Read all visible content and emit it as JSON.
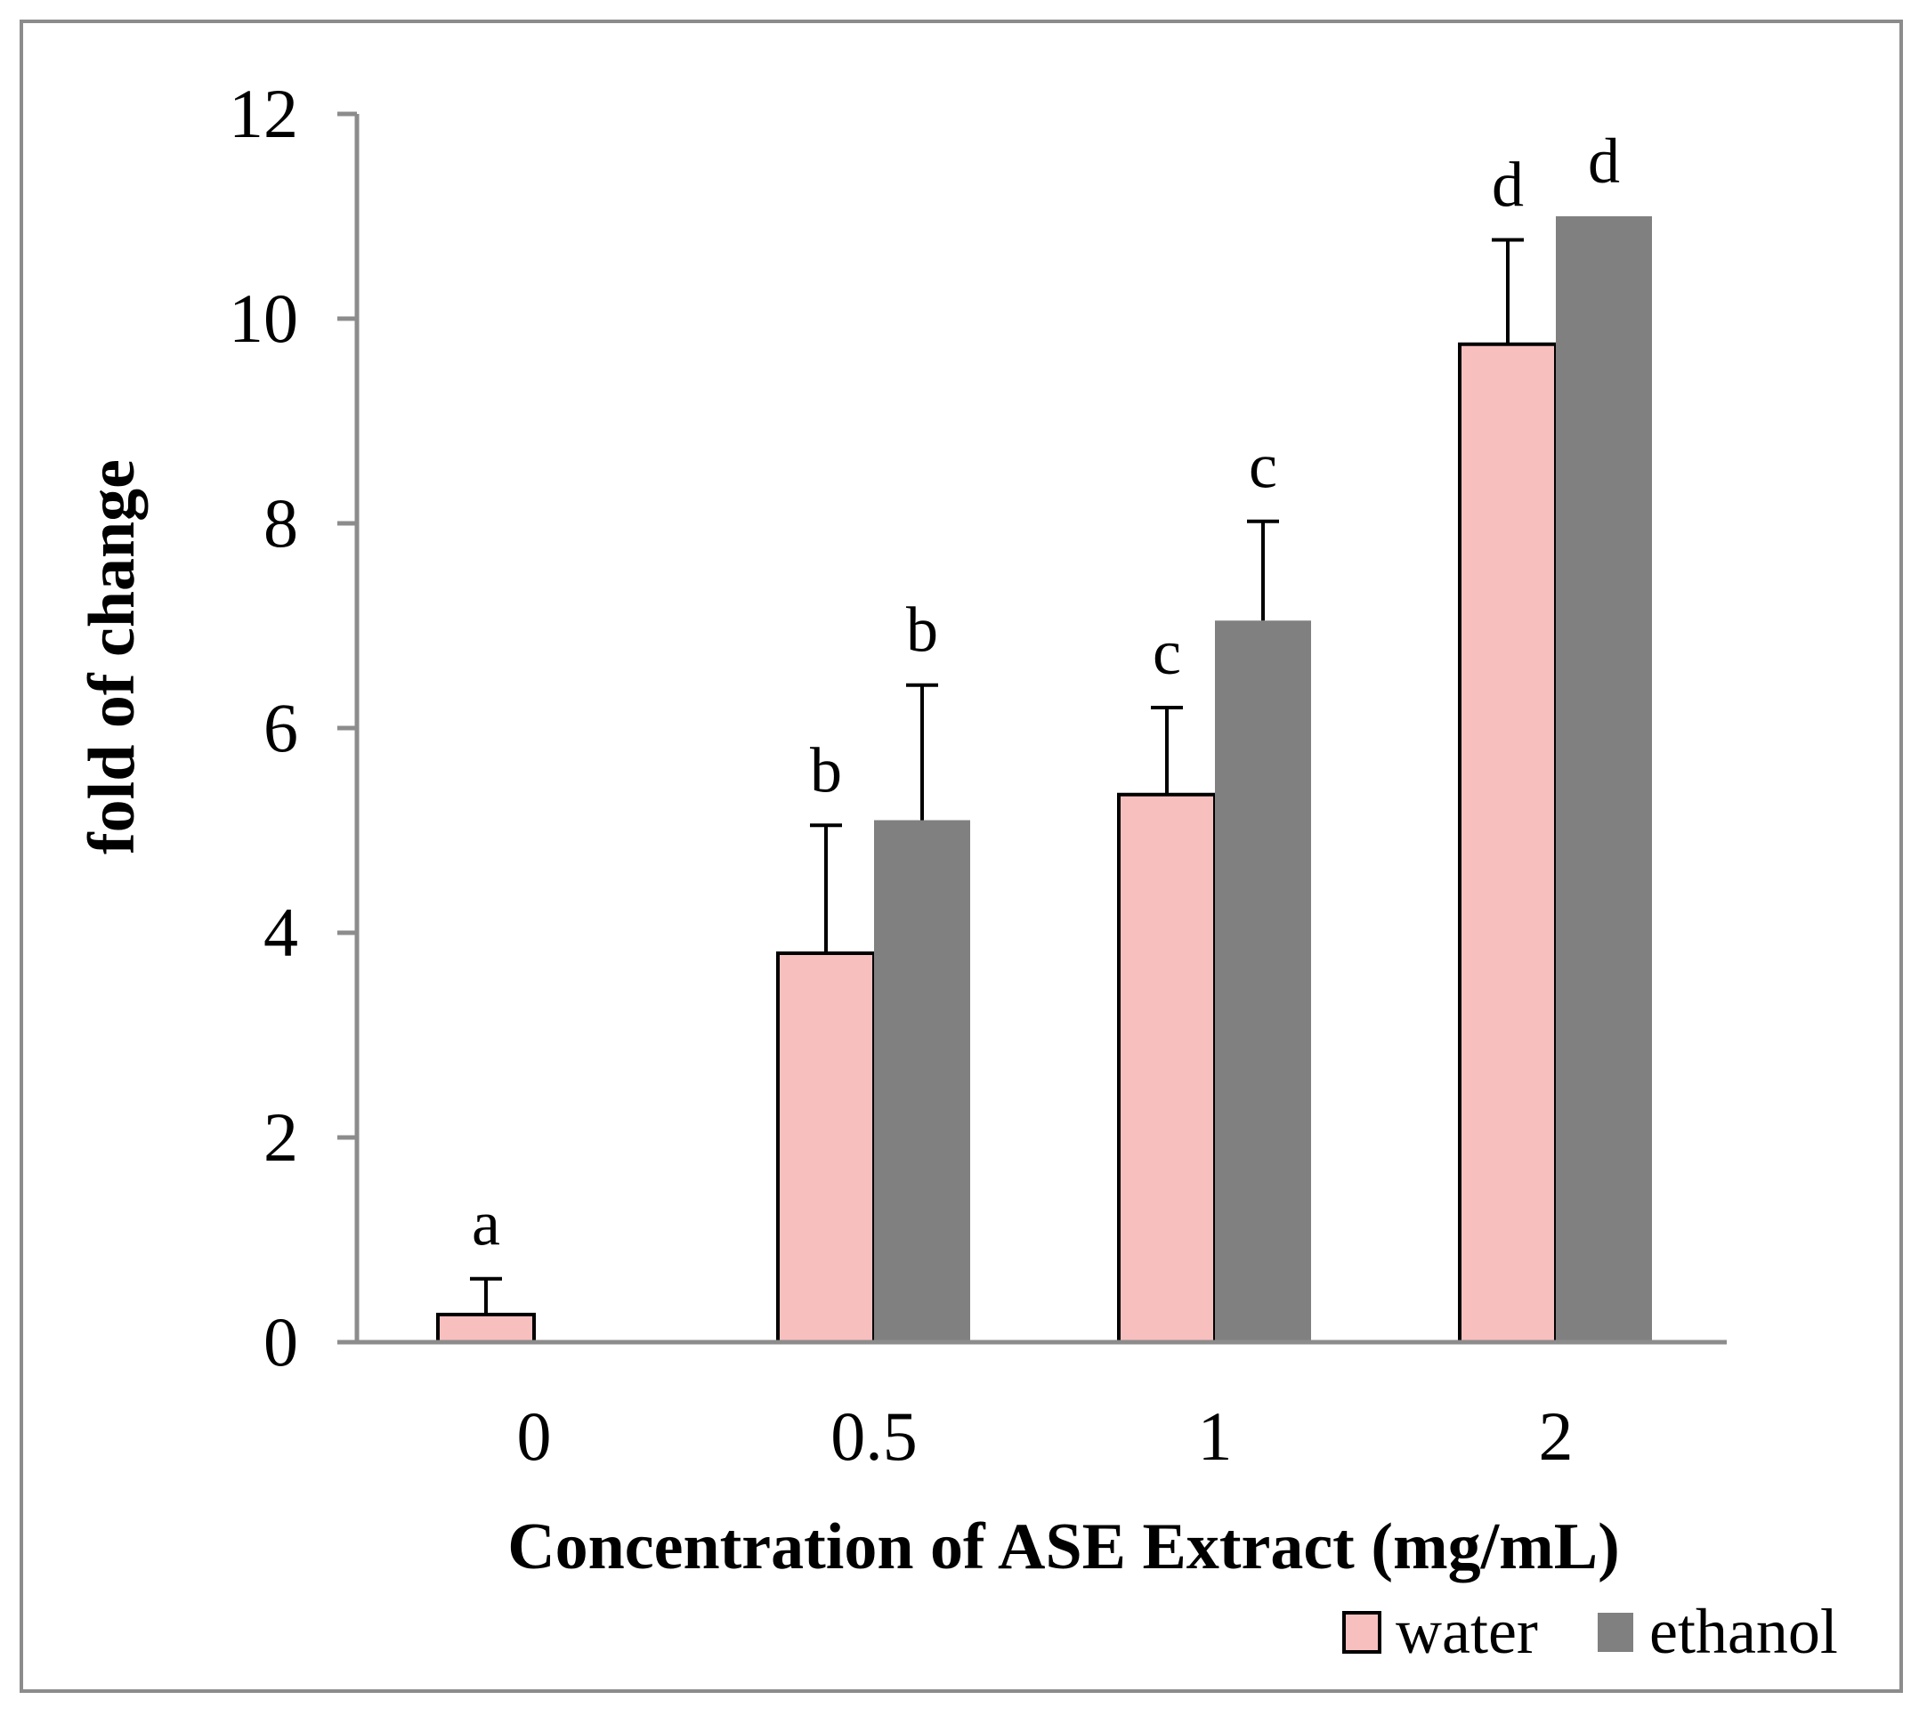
{
  "chart_data": {
    "type": "bar",
    "title": "",
    "xlabel": "Concentration of ASE Extract (mg/mL)",
    "ylabel": "fold of change",
    "categories": [
      "0",
      "0.5",
      "1",
      "2"
    ],
    "ylim": [
      0,
      12
    ],
    "yticks": [
      0,
      2,
      4,
      6,
      8,
      10,
      12
    ],
    "yticks_labels": [
      "0",
      "2",
      "4",
      "6",
      "8",
      "10",
      "12"
    ],
    "legend_position": "bottom-right",
    "series": [
      {
        "name": "water",
        "color": "#f8bfbf",
        "edge_color": "#000000",
        "values": [
          0.27,
          3.8,
          5.35,
          9.75
        ],
        "errors": [
          0.35,
          1.25,
          0.85,
          1.02
        ],
        "labels": [
          "a",
          "b",
          "c",
          "d"
        ]
      },
      {
        "name": "ethanol",
        "color": "#808080",
        "edge_color": "#808080",
        "values": [
          0,
          5.1,
          7.05,
          11.0
        ],
        "errors": [
          0,
          1.32,
          0.97,
          0
        ],
        "labels": [
          "",
          "b",
          "c",
          "d"
        ]
      }
    ]
  }
}
